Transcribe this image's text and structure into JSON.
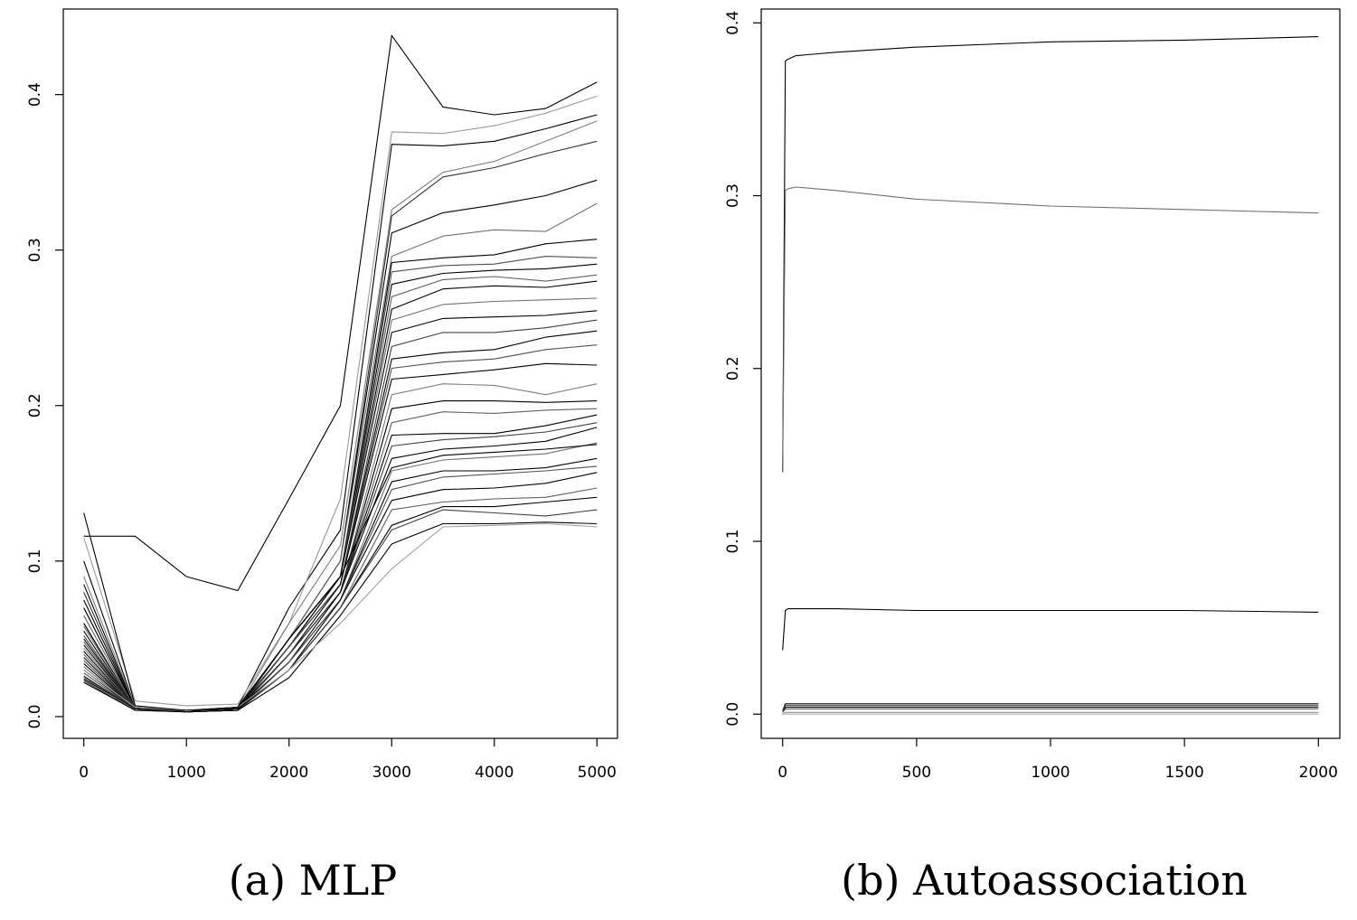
{
  "chart_data": [
    {
      "type": "line",
      "title": "",
      "caption": "(a) MLP",
      "xlabel": "",
      "ylabel": "",
      "xlim": [
        -200,
        5200
      ],
      "ylim": [
        -0.014,
        0.455
      ],
      "xticks": [
        0,
        1000,
        2000,
        3000,
        4000,
        5000
      ],
      "xtick_labels": [
        "0",
        "1000",
        "2000",
        "3000",
        "4000",
        "5000"
      ],
      "yticks": [
        0.0,
        0.1,
        0.2,
        0.3,
        0.4
      ],
      "ytick_labels": [
        "0.0",
        "0.1",
        "0.2",
        "0.3",
        "0.4"
      ],
      "x": [
        0,
        500,
        1000,
        1500,
        2000,
        2500,
        3000,
        3500,
        4000,
        4500,
        5000
      ],
      "series": [
        {
          "name": "trace-top",
          "color": "#000000",
          "values": [
            0.116,
            0.116,
            0.09,
            0.081,
            0.14,
            0.2,
            0.438,
            0.392,
            0.387,
            0.391,
            0.408
          ]
        },
        {
          "name": "trace-2",
          "color": "#000000",
          "values": [
            0.1,
            0.006,
            0.004,
            0.006,
            0.07,
            0.12,
            0.368,
            0.367,
            0.37,
            0.378,
            0.387
          ]
        },
        {
          "name": "trace-3",
          "color": "#9a9a9a",
          "values": [
            0.115,
            0.01,
            0.007,
            0.008,
            0.06,
            0.14,
            0.376,
            0.375,
            0.38,
            0.388,
            0.399
          ]
        },
        {
          "name": "trace-4",
          "color": "#808080",
          "values": [
            0.09,
            0.006,
            0.004,
            0.005,
            0.06,
            0.11,
            0.326,
            0.35,
            0.357,
            0.37,
            0.383
          ]
        },
        {
          "name": "trace-5",
          "color": "#303030",
          "values": [
            0.08,
            0.005,
            0.004,
            0.005,
            0.05,
            0.1,
            0.322,
            0.347,
            0.353,
            0.362,
            0.37
          ]
        },
        {
          "name": "trace-6",
          "color": "#000000",
          "values": [
            0.085,
            0.005,
            0.004,
            0.005,
            0.05,
            0.1,
            0.311,
            0.324,
            0.329,
            0.335,
            0.345
          ]
        },
        {
          "name": "trace-7",
          "color": "#707070",
          "values": [
            0.07,
            0.005,
            0.003,
            0.005,
            0.05,
            0.1,
            0.296,
            0.309,
            0.313,
            0.312,
            0.33
          ]
        },
        {
          "name": "trace-8",
          "color": "#000000",
          "values": [
            0.075,
            0.005,
            0.004,
            0.005,
            0.05,
            0.09,
            0.292,
            0.295,
            0.297,
            0.304,
            0.307
          ]
        },
        {
          "name": "trace-9",
          "color": "#505050",
          "values": [
            0.06,
            0.005,
            0.003,
            0.004,
            0.05,
            0.09,
            0.286,
            0.29,
            0.291,
            0.296,
            0.295
          ]
        },
        {
          "name": "trace-10",
          "color": "#000000",
          "values": [
            0.07,
            0.005,
            0.004,
            0.005,
            0.05,
            0.09,
            0.278,
            0.285,
            0.287,
            0.288,
            0.291
          ]
        },
        {
          "name": "trace-11",
          "color": "#606060",
          "values": [
            0.065,
            0.005,
            0.003,
            0.004,
            0.05,
            0.09,
            0.27,
            0.281,
            0.283,
            0.28,
            0.284
          ]
        },
        {
          "name": "trace-12",
          "color": "#000000",
          "values": [
            0.06,
            0.005,
            0.004,
            0.005,
            0.05,
            0.09,
            0.262,
            0.275,
            0.277,
            0.276,
            0.28
          ]
        },
        {
          "name": "trace-13",
          "color": "#707070",
          "values": [
            0.058,
            0.005,
            0.003,
            0.004,
            0.045,
            0.09,
            0.255,
            0.265,
            0.267,
            0.268,
            0.269
          ]
        },
        {
          "name": "trace-14",
          "color": "#000000",
          "values": [
            0.055,
            0.005,
            0.004,
            0.005,
            0.045,
            0.09,
            0.247,
            0.256,
            0.257,
            0.258,
            0.261
          ]
        },
        {
          "name": "trace-15",
          "color": "#404040",
          "values": [
            0.052,
            0.005,
            0.003,
            0.004,
            0.045,
            0.085,
            0.238,
            0.247,
            0.247,
            0.25,
            0.255
          ]
        },
        {
          "name": "trace-16",
          "color": "#000000",
          "values": [
            0.05,
            0.005,
            0.004,
            0.005,
            0.045,
            0.085,
            0.23,
            0.234,
            0.236,
            0.244,
            0.248
          ]
        },
        {
          "name": "trace-17",
          "color": "#505050",
          "values": [
            0.048,
            0.005,
            0.003,
            0.004,
            0.045,
            0.085,
            0.224,
            0.228,
            0.23,
            0.236,
            0.239
          ]
        },
        {
          "name": "trace-18",
          "color": "#000000",
          "values": [
            0.046,
            0.005,
            0.004,
            0.005,
            0.04,
            0.085,
            0.217,
            0.22,
            0.223,
            0.227,
            0.226
          ]
        },
        {
          "name": "trace-19",
          "color": "#808080",
          "values": [
            0.044,
            0.005,
            0.003,
            0.004,
            0.04,
            0.08,
            0.207,
            0.214,
            0.213,
            0.207,
            0.214
          ]
        },
        {
          "name": "trace-20",
          "color": "#000000",
          "values": [
            0.042,
            0.005,
            0.004,
            0.005,
            0.04,
            0.08,
            0.198,
            0.203,
            0.203,
            0.202,
            0.203
          ]
        },
        {
          "name": "trace-21",
          "color": "#606060",
          "values": [
            0.04,
            0.005,
            0.003,
            0.004,
            0.04,
            0.08,
            0.189,
            0.196,
            0.195,
            0.197,
            0.198
          ]
        },
        {
          "name": "trace-22",
          "color": "#000000",
          "values": [
            0.038,
            0.005,
            0.004,
            0.005,
            0.04,
            0.08,
            0.181,
            0.182,
            0.182,
            0.187,
            0.194
          ]
        },
        {
          "name": "trace-23",
          "color": "#404040",
          "values": [
            0.036,
            0.005,
            0.003,
            0.004,
            0.04,
            0.08,
            0.174,
            0.178,
            0.18,
            0.183,
            0.189
          ]
        },
        {
          "name": "trace-24",
          "color": "#000000",
          "values": [
            0.034,
            0.005,
            0.004,
            0.005,
            0.035,
            0.08,
            0.166,
            0.172,
            0.174,
            0.177,
            0.186
          ]
        },
        {
          "name": "trace-25",
          "color": "#707070",
          "values": [
            0.032,
            0.005,
            0.003,
            0.004,
            0.035,
            0.075,
            0.158,
            0.165,
            0.167,
            0.169,
            0.176
          ]
        },
        {
          "name": "trace-26",
          "color": "#000000",
          "values": [
            0.03,
            0.005,
            0.004,
            0.005,
            0.035,
            0.075,
            0.151,
            0.158,
            0.158,
            0.16,
            0.166
          ]
        },
        {
          "name": "trace-27",
          "color": "#505050",
          "values": [
            0.028,
            0.005,
            0.003,
            0.004,
            0.035,
            0.075,
            0.146,
            0.154,
            0.156,
            0.158,
            0.161
          ]
        },
        {
          "name": "trace-28",
          "color": "#000000",
          "values": [
            0.026,
            0.005,
            0.004,
            0.005,
            0.03,
            0.075,
            0.139,
            0.146,
            0.147,
            0.15,
            0.157
          ]
        },
        {
          "name": "trace-29",
          "color": "#606060",
          "values": [
            0.025,
            0.005,
            0.003,
            0.004,
            0.03,
            0.07,
            0.133,
            0.138,
            0.14,
            0.141,
            0.147
          ]
        },
        {
          "name": "trace-30",
          "color": "#000000",
          "values": [
            0.024,
            0.005,
            0.004,
            0.005,
            0.03,
            0.07,
            0.123,
            0.135,
            0.135,
            0.138,
            0.141
          ]
        },
        {
          "name": "trace-31",
          "color": "#404040",
          "values": [
            0.023,
            0.004,
            0.003,
            0.004,
            0.03,
            0.07,
            0.12,
            0.133,
            0.131,
            0.129,
            0.133
          ]
        },
        {
          "name": "trace-32",
          "color": "#000000",
          "values": [
            0.022,
            0.004,
            0.003,
            0.004,
            0.025,
            0.065,
            0.111,
            0.124,
            0.124,
            0.125,
            0.124
          ]
        },
        {
          "name": "trace-33",
          "color": "#a0a0a0",
          "values": [
            0.03,
            0.006,
            0.004,
            0.006,
            0.03,
            0.06,
            0.095,
            0.122,
            0.123,
            0.124,
            0.122
          ]
        },
        {
          "name": "trace-34",
          "color": "#000000",
          "values": [
            0.131,
            0.007,
            0.004,
            0.006,
            0.05,
            0.09,
            0.16,
            0.168,
            0.17,
            0.172,
            0.175
          ]
        }
      ]
    },
    {
      "type": "line",
      "title": "",
      "caption": "(b) Autoassociation",
      "xlabel": "",
      "ylabel": "",
      "xlim": [
        -80,
        2080
      ],
      "ylim": [
        -0.014,
        0.408
      ],
      "xticks": [
        0,
        500,
        1000,
        1500,
        2000
      ],
      "xtick_labels": [
        "0",
        "500",
        "1000",
        "1500",
        "2000"
      ],
      "yticks": [
        0.0,
        0.1,
        0.2,
        0.3,
        0.4
      ],
      "ytick_labels": [
        "0.0",
        "0.1",
        "0.2",
        "0.3",
        "0.4"
      ],
      "x": [
        0,
        10,
        20,
        50,
        200,
        500,
        1000,
        1500,
        2000
      ],
      "series": [
        {
          "name": "trace-top",
          "color": "#000000",
          "values": [
            0.14,
            0.378,
            0.379,
            0.381,
            0.383,
            0.386,
            0.389,
            0.39,
            0.392
          ]
        },
        {
          "name": "trace-upper",
          "color": "#707070",
          "values": [
            0.14,
            0.303,
            0.304,
            0.305,
            0.303,
            0.298,
            0.294,
            0.292,
            0.29
          ]
        },
        {
          "name": "trace-mid",
          "color": "#000000",
          "values": [
            0.037,
            0.06,
            0.061,
            0.061,
            0.061,
            0.06,
            0.06,
            0.06,
            0.059
          ]
        },
        {
          "name": "trace-low-1",
          "color": "#000000",
          "values": [
            0.002,
            0.006,
            0.006,
            0.006,
            0.006,
            0.006,
            0.006,
            0.006,
            0.006
          ]
        },
        {
          "name": "trace-low-2",
          "color": "#404040",
          "values": [
            0.002,
            0.005,
            0.005,
            0.005,
            0.005,
            0.005,
            0.005,
            0.005,
            0.005
          ]
        },
        {
          "name": "trace-low-3",
          "color": "#000000",
          "values": [
            0.001,
            0.004,
            0.004,
            0.004,
            0.004,
            0.004,
            0.004,
            0.004,
            0.004
          ]
        },
        {
          "name": "trace-low-4",
          "color": "#606060",
          "values": [
            0.001,
            0.003,
            0.003,
            0.003,
            0.003,
            0.003,
            0.003,
            0.003,
            0.003
          ]
        },
        {
          "name": "trace-low-5",
          "color": "#909090",
          "values": [
            0.0,
            0.001,
            0.001,
            0.001,
            0.001,
            0.001,
            0.001,
            0.001,
            0.001
          ]
        },
        {
          "name": "trace-low-6",
          "color": "#b0b0b0",
          "values": [
            0.0,
            0.0,
            0.0,
            0.0,
            0.0,
            0.0,
            0.0,
            0.0,
            0.0
          ]
        }
      ]
    }
  ]
}
